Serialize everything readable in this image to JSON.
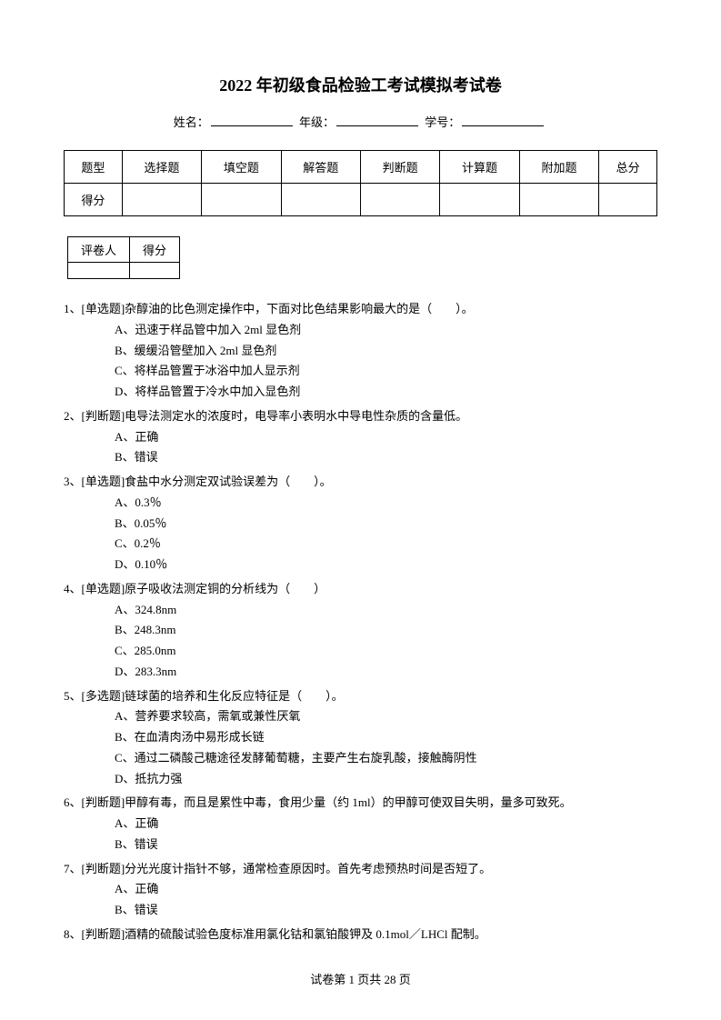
{
  "title": "2022 年初级食品检验工考试模拟考试卷",
  "info": {
    "name_label": "姓名：",
    "grade_label": "年级：",
    "id_label": "学号："
  },
  "score_table": {
    "headers": [
      "题型",
      "选择题",
      "填空题",
      "解答题",
      "判断题",
      "计算题",
      "附加题",
      "总分"
    ],
    "row_label": "得分"
  },
  "grader_table": {
    "headers": [
      "评卷人",
      "得分"
    ]
  },
  "questions": [
    {
      "stem": "1、[单选题]杂醇油的比色测定操作中，下面对比色结果影响最大的是（　　）。",
      "options": [
        "A、迅速于样品管中加入 2ml 显色剂",
        "B、缓缓沿管壁加入 2ml 显色剂",
        "C、将样品管置于冰浴中加人显示剂",
        "D、将样品管置于冷水中加入显色剂"
      ]
    },
    {
      "stem": "2、[判断题]电导法测定水的浓度时，电导率小表明水中导电性杂质的含量低。",
      "options": [
        "A、正确",
        "B、错误"
      ]
    },
    {
      "stem": "3、[单选题]食盐中水分测定双试验误差为（　　）。",
      "options": [
        "A、0.3％",
        "B、0.05％",
        "C、0.2％",
        "D、0.10％"
      ]
    },
    {
      "stem": "4、[单选题]原子吸收法测定铜的分析线为（　　）",
      "options": [
        "A、324.8nm",
        "B、248.3nm",
        "C、285.0nm",
        "D、283.3nm"
      ]
    },
    {
      "stem": "5、[多选题]链球菌的培养和生化反应特征是（　　）。",
      "options": [
        "A、营养要求较高，需氧或兼性厌氧",
        "B、在血清肉汤中易形成长链",
        "C、通过二磷酸己糖途径发酵葡萄糖，主要产生右旋乳酸，接触酶阴性",
        "D、抵抗力强"
      ]
    },
    {
      "stem": "6、[判断题]甲醇有毒，而且是累性中毒，食用少量（约 1ml）的甲醇可使双目失明，量多可致死。",
      "options": [
        "A、正确",
        "B、错误"
      ]
    },
    {
      "stem": "7、[判断题]分光光度计指针不够，通常检查原因时。首先考虑预热时间是否短了。",
      "options": [
        "A、正确",
        "B、错误"
      ]
    },
    {
      "stem": "8、[判断题]酒精的硫酸试验色度标准用氯化钴和氯铂酸钾及 0.1mol／LHCl 配制。",
      "options": []
    }
  ],
  "footer": {
    "prefix": "试卷第 ",
    "page": "1",
    "mid": " 页共 ",
    "total": "28",
    "suffix": " 页"
  }
}
